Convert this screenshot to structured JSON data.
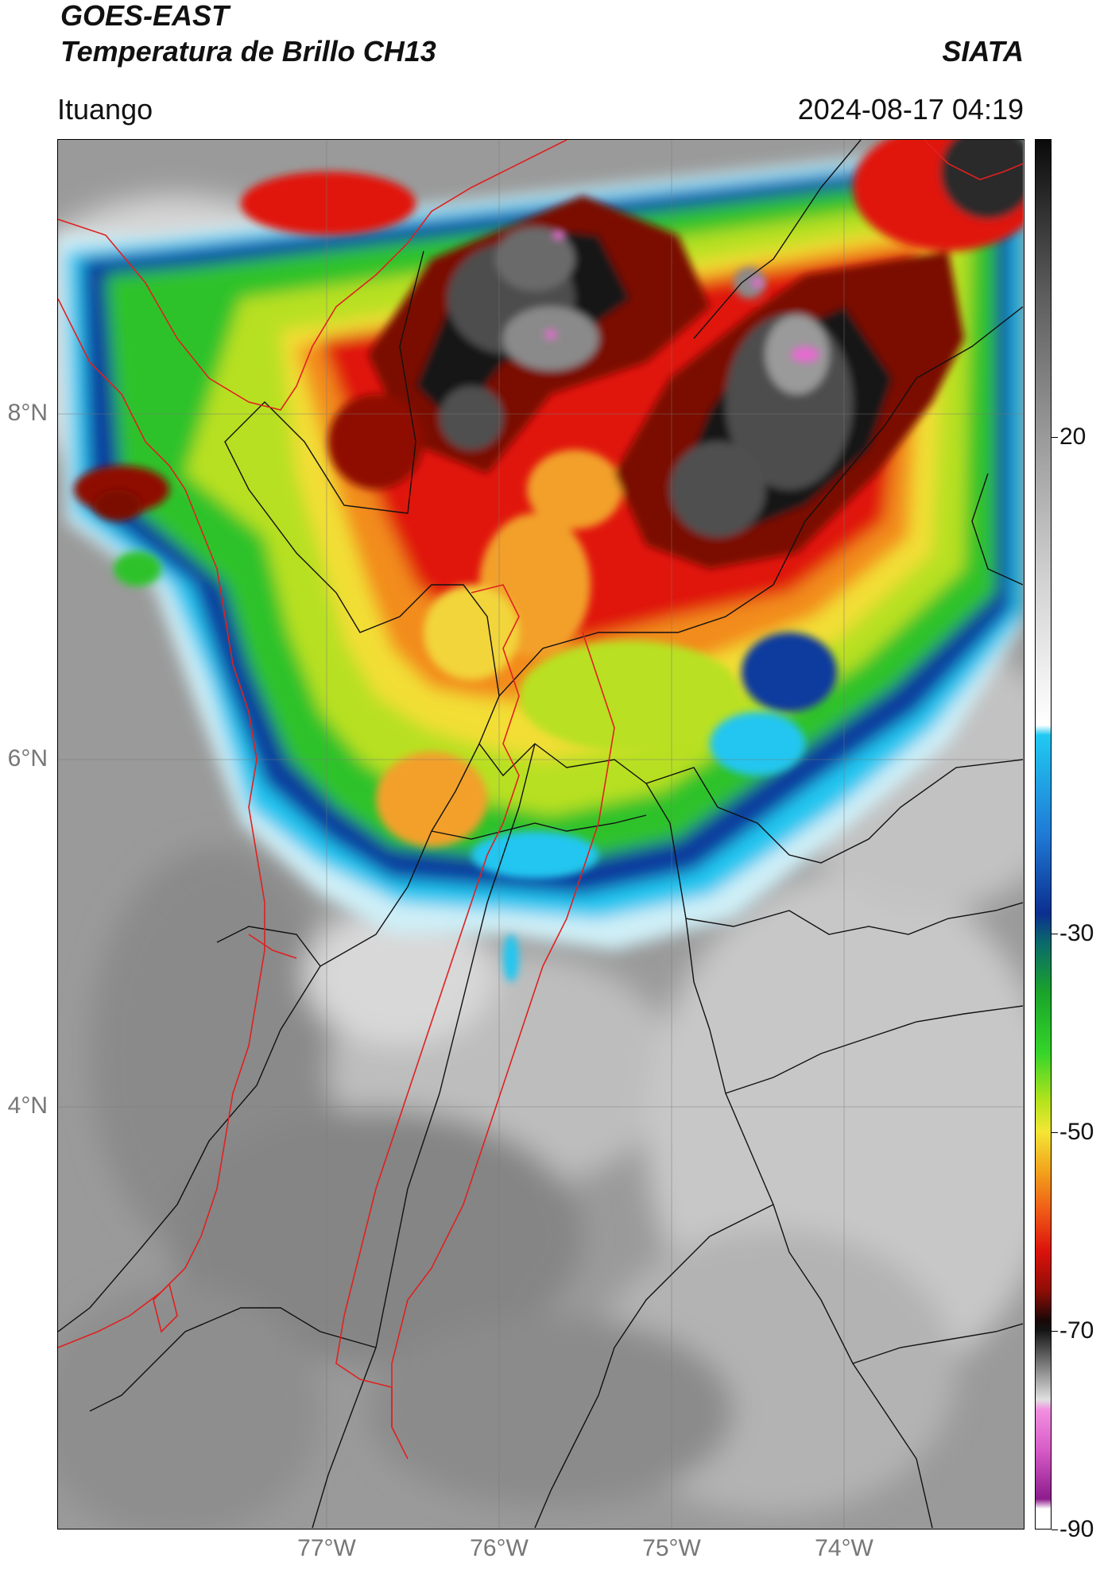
{
  "header": {
    "satellite": "GOES-EAST",
    "product": "Temperatura de Brillo CH13",
    "brand": "SIATA",
    "station": "Ituango",
    "timestamp": "2024-08-17 04:19"
  },
  "map": {
    "latitude_labels": [
      "8°N",
      "6°N",
      "4°N"
    ],
    "longitude_labels": [
      "77°W",
      "76°W",
      "75°W",
      "74°W"
    ],
    "latitudes": [
      8,
      6,
      4
    ],
    "longitudes": [
      -77,
      -76,
      -75,
      -74
    ],
    "extent": {
      "lon_min": -78.55,
      "lon_max": -72.95,
      "lat_min": 1.45,
      "lat_max": 9.55
    },
    "colors": {
      "cloud_free_gray": "#9a9a9a",
      "warm_gray_light": "#d2d2d2",
      "cyan": "#22c4f0",
      "blue": "#103b9e",
      "green": "#2dc42d",
      "yellow": "#f2e03a",
      "orange": "#f28c1c",
      "red": "#e0160e",
      "dark_red": "#7a0c06",
      "black": "#141414",
      "dark_gray": "#4a4a4a",
      "pink": "#e66bd0",
      "magenta": "#9a2a9a",
      "boundary_black": "#111111",
      "boundary_red": "#e02020"
    }
  },
  "colorbar": {
    "unit_range": [
      -90,
      50
    ],
    "tick_labels": [
      "20",
      "-30",
      "-50",
      "-70",
      "-90"
    ],
    "tick_values": [
      20,
      -30,
      -50,
      -70,
      -90
    ],
    "stops": [
      {
        "value": 50,
        "color": "#0a0a0a"
      },
      {
        "value": 35,
        "color": "#5a5a5a"
      },
      {
        "value": 20,
        "color": "#9a9a9a"
      },
      {
        "value": 5,
        "color": "#d4d4d4"
      },
      {
        "value": -9,
        "color": "#ffffff"
      },
      {
        "value": -10,
        "color": "#21c9f2"
      },
      {
        "value": -20,
        "color": "#1f7ad6"
      },
      {
        "value": -28,
        "color": "#0b2f90"
      },
      {
        "value": -31,
        "color": "#0b6a6a"
      },
      {
        "value": -36,
        "color": "#1aa42a"
      },
      {
        "value": -42,
        "color": "#34d42a"
      },
      {
        "value": -47,
        "color": "#b7e41c"
      },
      {
        "value": -50,
        "color": "#f4e634"
      },
      {
        "value": -54,
        "color": "#f2a21c"
      },
      {
        "value": -58,
        "color": "#ef5a16"
      },
      {
        "value": -62,
        "color": "#dc120c"
      },
      {
        "value": -66,
        "color": "#8f0d06"
      },
      {
        "value": -69,
        "color": "#1a0808"
      },
      {
        "value": -70,
        "color": "#141414"
      },
      {
        "value": -74,
        "color": "#8a8a8a"
      },
      {
        "value": -77,
        "color": "#e0e0e0"
      },
      {
        "value": -78,
        "color": "#f290e0"
      },
      {
        "value": -82,
        "color": "#d85cc8"
      },
      {
        "value": -87,
        "color": "#8c1c8c"
      },
      {
        "value": -88,
        "color": "#ffffff"
      },
      {
        "value": -90,
        "color": "#ffffff"
      }
    ]
  }
}
